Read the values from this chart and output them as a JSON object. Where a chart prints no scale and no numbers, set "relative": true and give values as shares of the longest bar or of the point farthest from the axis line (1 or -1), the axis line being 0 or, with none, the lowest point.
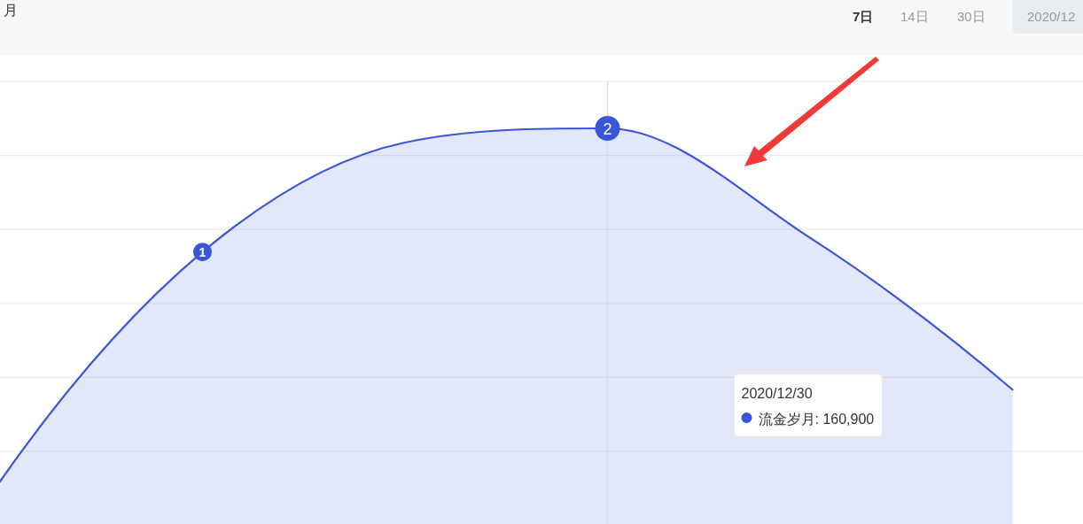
{
  "chart_data": {
    "type": "area",
    "relative": true,
    "title": "月",
    "categories": [
      null,
      null,
      null,
      null,
      null,
      null
    ],
    "series": [
      {
        "color": "#3b55d9",
        "values": [
          0,
          0.65,
          0.96,
          1,
          0.69,
          0.26
        ]
      }
    ],
    "ref_lines": [
      {
        "axis": "x",
        "label": "2020/12/30",
        "color": "#dcdcdc"
      }
    ],
    "annotations": [
      "流金岁月: 160,900",
      {
        "text": "1",
        "y": 0.65
      },
      {
        "text": "2",
        "y": 1
      },
      "7日",
      "14日",
      "30日",
      "2020/12"
    ],
    "grid": "y"
  }
}
